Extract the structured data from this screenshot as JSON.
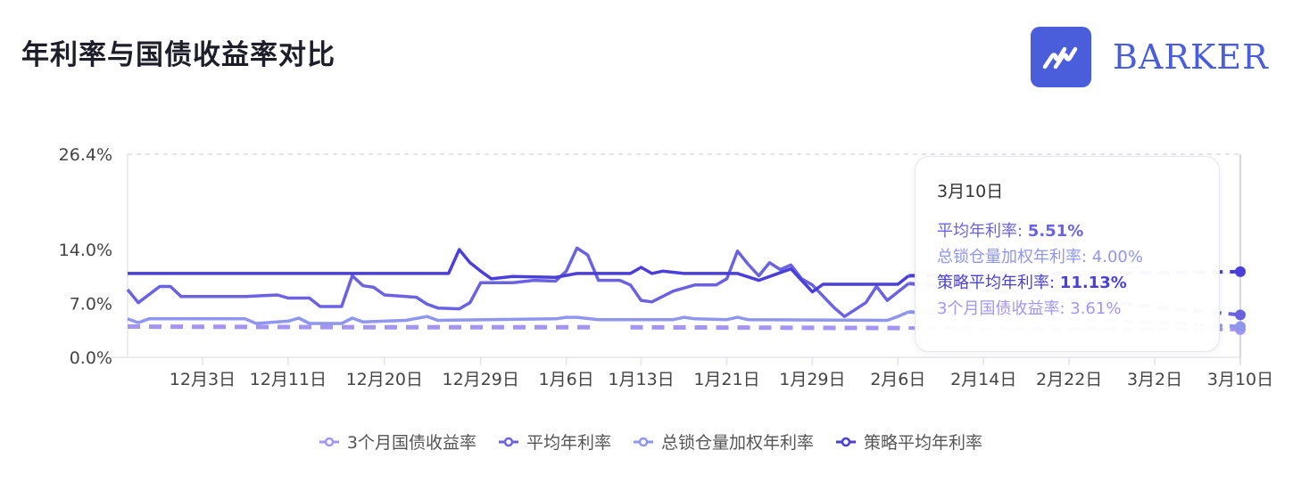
{
  "title": "年利率与国债收益率对比",
  "logo": {
    "text": "BARKER",
    "color": "#4a5ddb"
  },
  "tooltip": {
    "date": "3月10日",
    "rows": [
      {
        "label": "平均年利率",
        "value": "5.51%",
        "color": "#6a62e0"
      },
      {
        "label": "总锁仓量加权年利率",
        "value": "4.00%",
        "color": "#8f96ee"
      },
      {
        "label": "策略平均年利率",
        "value": "11.13%",
        "color": "#4a3fd8"
      },
      {
        "label": "3个月国债收益率",
        "value": "3.61%",
        "color": "#a594f2"
      }
    ]
  },
  "chart_data": {
    "type": "line",
    "title": "年利率与国债收益率对比",
    "xlabel": "",
    "ylabel": "",
    "ylim": [
      0,
      26.4
    ],
    "y_ticks": [
      "0.0%",
      "7.0%",
      "14.0%",
      "26.4%"
    ],
    "y_tick_values": [
      0,
      7,
      14,
      26.4
    ],
    "x_range": [
      "11-26",
      "03-10"
    ],
    "x_ticks": [
      "12月3日",
      "12月11日",
      "12月20日",
      "12月29日",
      "1月6日",
      "1月13日",
      "1月21日",
      "1月29日",
      "2月6日",
      "2月14日",
      "2月22日",
      "3月2日",
      "3月10日"
    ],
    "x_tick_dates": [
      "12-03",
      "12-11",
      "12-20",
      "12-29",
      "01-06",
      "01-13",
      "01-21",
      "01-29",
      "02-06",
      "02-14",
      "02-22",
      "03-02",
      "03-10"
    ],
    "grid": "top dashed line only",
    "legend_position": "bottom",
    "series": [
      {
        "name": "3个月国债收益率",
        "color": "#a594f2",
        "style": "dashed",
        "points": [
          [
            "11-26",
            4.0
          ],
          [
            "12-20",
            3.9
          ],
          [
            "01-09",
            3.9
          ],
          [
            "01-10",
            null
          ],
          [
            "01-11",
            null
          ],
          [
            "01-12",
            3.9
          ],
          [
            "02-07",
            3.8
          ],
          [
            "03-10",
            3.61
          ]
        ]
      },
      {
        "name": "平均年利率",
        "color": "#6a62e0",
        "style": "solid",
        "points": [
          [
            "11-26",
            8.8
          ],
          [
            "11-27",
            7.1
          ],
          [
            "11-29",
            9.2
          ],
          [
            "11-30",
            9.2
          ],
          [
            "12-01",
            7.9
          ],
          [
            "12-07",
            7.9
          ],
          [
            "12-10",
            8.1
          ],
          [
            "12-11",
            7.7
          ],
          [
            "12-13",
            7.7
          ],
          [
            "12-14",
            6.6
          ],
          [
            "12-16",
            6.6
          ],
          [
            "12-17",
            10.6
          ],
          [
            "12-18",
            9.3
          ],
          [
            "12-19",
            9.1
          ],
          [
            "12-20",
            8.1
          ],
          [
            "12-23",
            7.8
          ],
          [
            "12-24",
            6.9
          ],
          [
            "12-25",
            6.4
          ],
          [
            "12-27",
            6.3
          ],
          [
            "12-28",
            7.1
          ],
          [
            "12-29",
            9.7
          ],
          [
            "01-01",
            9.7
          ],
          [
            "01-03",
            10.0
          ],
          [
            "01-05",
            9.9
          ],
          [
            "01-06",
            11.2
          ],
          [
            "01-07",
            14.2
          ],
          [
            "01-08",
            13.3
          ],
          [
            "01-09",
            10.0
          ],
          [
            "01-11",
            10.0
          ],
          [
            "01-12",
            9.4
          ],
          [
            "01-13",
            7.4
          ],
          [
            "01-14",
            7.2
          ],
          [
            "01-16",
            8.6
          ],
          [
            "01-18",
            9.4
          ],
          [
            "01-20",
            9.4
          ],
          [
            "01-21",
            10.2
          ],
          [
            "01-22",
            13.8
          ],
          [
            "01-23",
            12.1
          ],
          [
            "01-24",
            10.6
          ],
          [
            "01-25",
            12.3
          ],
          [
            "01-26",
            11.4
          ],
          [
            "01-27",
            12.0
          ],
          [
            "01-28",
            10.2
          ],
          [
            "01-29",
            9.4
          ],
          [
            "01-31",
            6.5
          ],
          [
            "02-01",
            5.3
          ],
          [
            "02-03",
            7.1
          ],
          [
            "02-04",
            9.2
          ],
          [
            "02-05",
            7.4
          ],
          [
            "02-07",
            9.6
          ],
          [
            "03-10",
            5.51
          ]
        ]
      },
      {
        "name": "总锁仓量加权年利率",
        "color": "#8f96ee",
        "style": "solid",
        "points": [
          [
            "11-26",
            5.0
          ],
          [
            "11-27",
            4.5
          ],
          [
            "11-28",
            5.0
          ],
          [
            "12-07",
            5.0
          ],
          [
            "12-08",
            4.4
          ],
          [
            "12-11",
            4.7
          ],
          [
            "12-12",
            5.1
          ],
          [
            "12-13",
            4.4
          ],
          [
            "12-16",
            4.4
          ],
          [
            "12-17",
            5.1
          ],
          [
            "12-18",
            4.6
          ],
          [
            "12-22",
            4.8
          ],
          [
            "12-24",
            5.3
          ],
          [
            "12-25",
            4.8
          ],
          [
            "01-05",
            5.0
          ],
          [
            "01-06",
            5.2
          ],
          [
            "01-07",
            5.2
          ],
          [
            "01-09",
            4.9
          ],
          [
            "01-16",
            4.9
          ],
          [
            "01-17",
            5.2
          ],
          [
            "01-18",
            5.0
          ],
          [
            "01-21",
            4.9
          ],
          [
            "01-22",
            5.2
          ],
          [
            "01-23",
            4.9
          ],
          [
            "02-05",
            4.8
          ],
          [
            "02-06",
            5.3
          ],
          [
            "02-07",
            5.9
          ],
          [
            "03-10",
            4.0
          ]
        ]
      },
      {
        "name": "策略平均年利率",
        "color": "#4a3fd8",
        "style": "solid",
        "points": [
          [
            "11-26",
            10.9
          ],
          [
            "12-26",
            10.9
          ],
          [
            "12-27",
            14.0
          ],
          [
            "12-28",
            12.3
          ],
          [
            "12-29",
            11.2
          ],
          [
            "12-30",
            10.2
          ],
          [
            "01-01",
            10.5
          ],
          [
            "01-05",
            10.4
          ],
          [
            "01-07",
            10.9
          ],
          [
            "01-12",
            10.9
          ],
          [
            "01-13",
            11.7
          ],
          [
            "01-14",
            10.9
          ],
          [
            "01-15",
            11.2
          ],
          [
            "01-17",
            10.9
          ],
          [
            "01-22",
            10.9
          ],
          [
            "01-24",
            10.0
          ],
          [
            "01-25",
            10.5
          ],
          [
            "01-27",
            11.5
          ],
          [
            "01-29",
            8.5
          ],
          [
            "01-30",
            9.5
          ],
          [
            "02-06",
            9.5
          ],
          [
            "02-07",
            10.6
          ],
          [
            "03-10",
            11.13
          ]
        ]
      }
    ]
  }
}
